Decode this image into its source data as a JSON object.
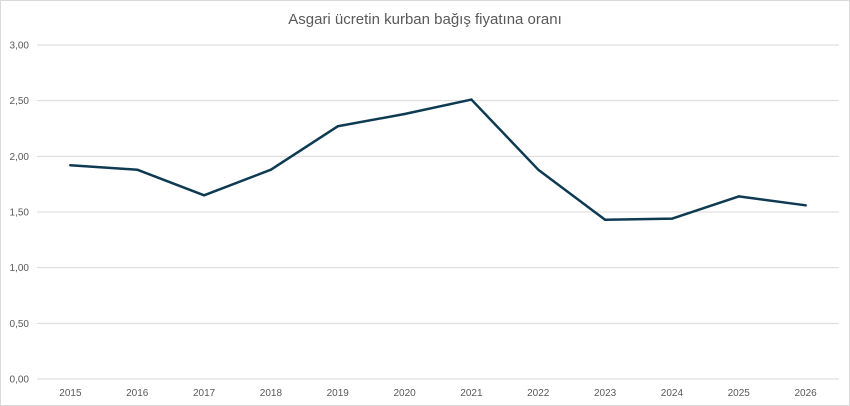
{
  "chart_data": {
    "type": "line",
    "title": "Asgari ücretin kurban bağış fiyatına oranı",
    "xlabel": "",
    "ylabel": "",
    "categories": [
      "2015",
      "2016",
      "2017",
      "2018",
      "2019",
      "2020",
      "2021",
      "2022",
      "2023",
      "2024",
      "2025",
      "2026"
    ],
    "series": [
      {
        "values": [
          1.92,
          1.88,
          1.65,
          1.88,
          2.27,
          2.38,
          2.51,
          1.88,
          1.43,
          1.44,
          1.64,
          1.56
        ]
      }
    ],
    "ylim": [
      0,
      3
    ],
    "yticks": [
      "0,00",
      "0,50",
      "1,00",
      "1,50",
      "2,00",
      "2,50",
      "3,00"
    ],
    "ytick_values": [
      0,
      0.5,
      1,
      1.5,
      2,
      2.5,
      3
    ],
    "grid": true,
    "legend": "none",
    "line_color": "#0e3a52",
    "grid_color": "#d9d9d9"
  }
}
